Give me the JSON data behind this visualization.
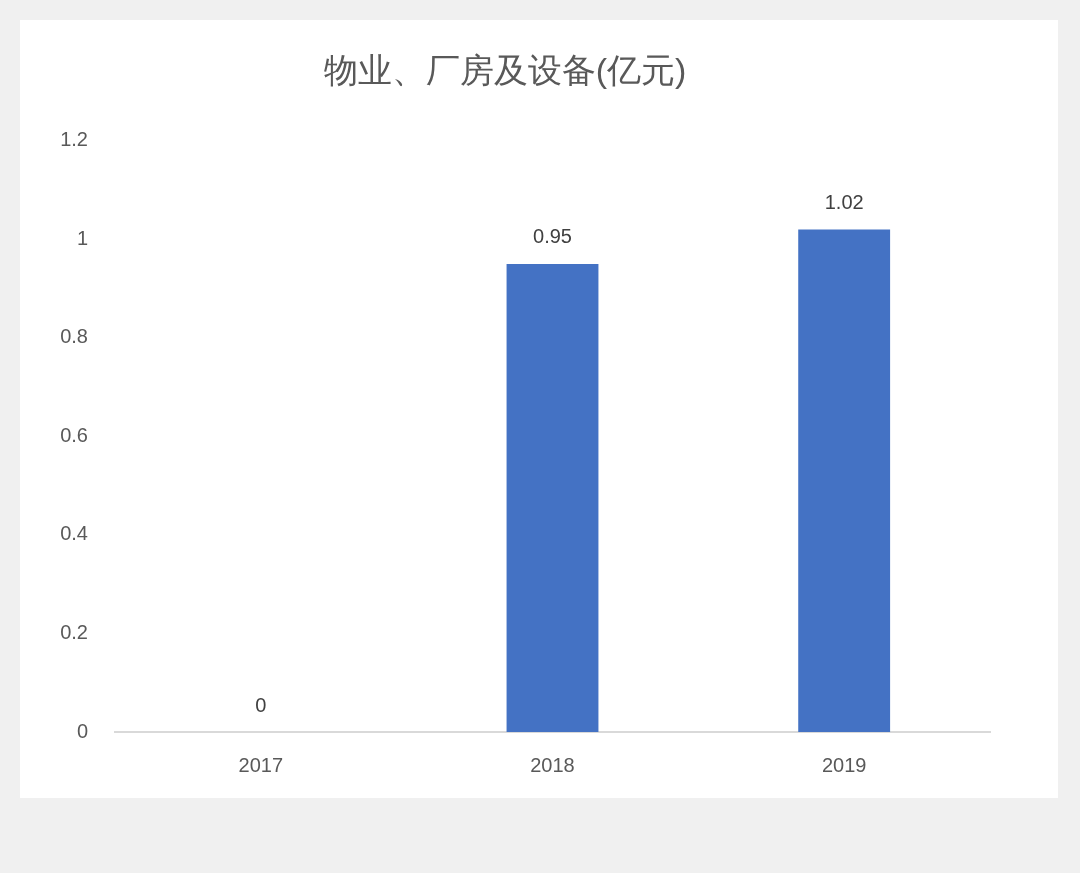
{
  "chart_data": {
    "type": "bar",
    "title": "物业、厂房及设备(亿元)",
    "categories": [
      "2017",
      "2018",
      "2019"
    ],
    "values": [
      0,
      0.95,
      1.02
    ],
    "color": "#4472c4",
    "ylim": [
      0,
      1.2
    ],
    "yticks": [
      0,
      0.2,
      0.4,
      0.6,
      0.8,
      1,
      1.2
    ],
    "grid": false,
    "data_labels": true,
    "legend": false
  }
}
